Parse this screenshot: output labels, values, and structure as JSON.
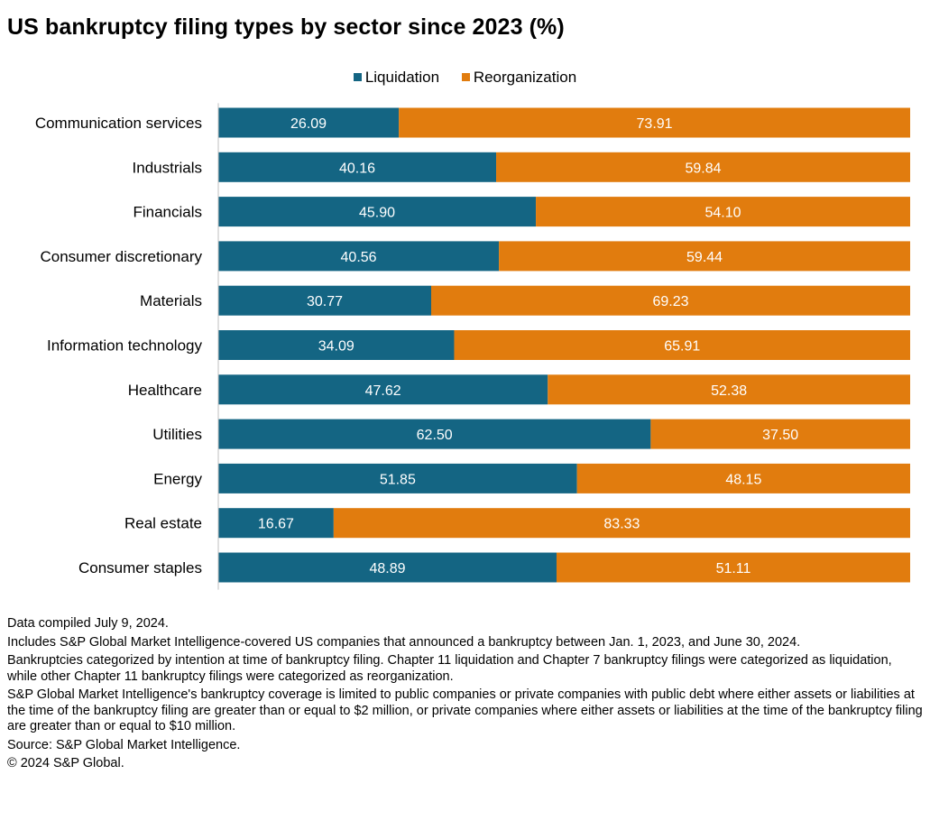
{
  "title": "US bankruptcy filing types by sector since 2023 (%)",
  "colors": {
    "liquidation": "#146583",
    "reorganization": "#e17c0e"
  },
  "chart_data": {
    "type": "bar",
    "orientation": "horizontal",
    "stacked": true,
    "title": "US bankruptcy filing types by sector since 2023 (%)",
    "categories": [
      "Communication services",
      "Industrials",
      "Financials",
      "Consumer discretionary",
      "Materials",
      "Information technology",
      "Healthcare",
      "Utilities",
      "Energy",
      "Real estate",
      "Consumer staples"
    ],
    "series": [
      {
        "name": "Liquidation",
        "values": [
          26.09,
          40.16,
          45.9,
          40.56,
          30.77,
          34.09,
          47.62,
          62.5,
          51.85,
          16.67,
          48.89
        ],
        "labels": [
          "26.09",
          "40.16",
          "45.90",
          "40.56",
          "30.77",
          "34.09",
          "47.62",
          "62.50",
          "51.85",
          "16.67",
          "48.89"
        ]
      },
      {
        "name": "Reorganization",
        "values": [
          73.91,
          59.84,
          54.1,
          59.44,
          69.23,
          65.91,
          52.38,
          37.5,
          48.15,
          83.33,
          51.11
        ],
        "labels": [
          "73.91",
          "59.84",
          "54.10",
          "59.44",
          "69.23",
          "65.91",
          "52.38",
          "37.50",
          "48.15",
          "83.33",
          "51.11"
        ]
      }
    ],
    "xlim": [
      0,
      100
    ],
    "legend": "top-center",
    "grid": false
  },
  "notes": [
    "Data compiled July 9, 2024.",
    "Includes S&P Global Market Intelligence-covered US companies that announced a bankruptcy between Jan. 1, 2023, and June 30, 2024.",
    "Bankruptcies categorized by intention at time of bankruptcy filing. Chapter 11 liquidation and Chapter 7 bankruptcy filings were categorized as liquidation, while other Chapter 11 bankruptcy filings were categorized as reorganization.",
    "S&P Global Market Intelligence's bankruptcy coverage is limited to public companies or private companies with public debt where either assets or liabilities at the time of the bankruptcy filing are greater than or equal to $2 million, or private companies where either assets or liabilities at the time of the bankruptcy filing are greater than or equal to $10 million.",
    "Source: S&P Global Market Intelligence.",
    "© 2024 S&P Global."
  ]
}
